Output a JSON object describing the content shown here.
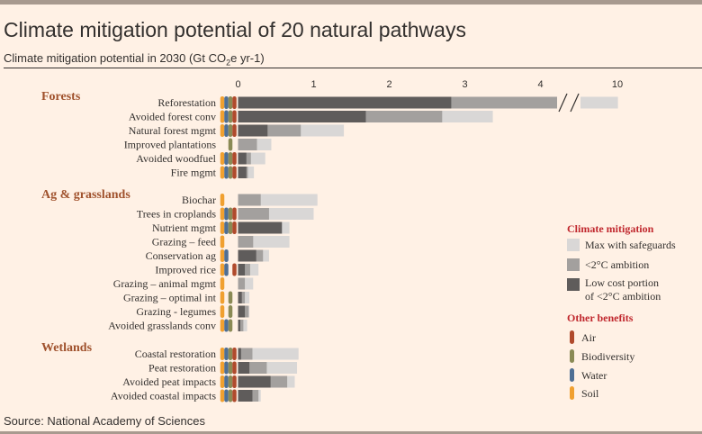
{
  "title": "Climate mitigation potential of 20 natural pathways",
  "subtitle": "Climate mitigation potential in 2030 (Gt CO",
  "subtitle_sub": "2",
  "subtitle_tail": "e yr-1)",
  "source": "Source: National Academy of Sciences",
  "colors": {
    "background": "#fff1e5",
    "max": "#d9d7d6",
    "ambition": "#a3a09e",
    "lowcost": "#5f5c5b",
    "air": "#b04a2c",
    "biodiversity": "#8a8a55",
    "water": "#4f6f94",
    "soil": "#f0a030",
    "group_label": "#a0522d",
    "legend_heading": "#c0272d"
  },
  "legend": {
    "mitigation_heading": "Climate mitigation",
    "max_label": "Max with safeguards",
    "ambition_label": "<2°C ambition",
    "lowcost_label_1": "Low cost portion",
    "lowcost_label_2": "of <2°C ambition",
    "benefits_heading": "Other benefits",
    "air_label": "Air",
    "biodiversity_label": "Biodiversity",
    "water_label": "Water",
    "soil_label": "Soil"
  },
  "chart_data": {
    "type": "bar",
    "orientation": "horizontal-stacked",
    "title": "Climate mitigation potential of 20 natural pathways",
    "xlabel": "Climate mitigation potential in 2030 (Gt CO2e yr-1)",
    "xlim": [
      0,
      10
    ],
    "ticks": [
      0,
      1,
      2,
      3,
      4,
      10
    ],
    "tick_labels": [
      "0",
      "1",
      "2",
      "3",
      "4",
      "10"
    ],
    "axis_break_between": [
      4,
      10
    ],
    "series_names": [
      "Low cost portion of <2°C ambition",
      "<2°C ambition",
      "Max with safeguards"
    ],
    "groups": [
      {
        "name": "Forests",
        "pathways": [
          {
            "name": "Reforestation",
            "lowcost": 2.82,
            "ambition": 4.3,
            "max": 10.1,
            "benefits": [
              "soil",
              "water",
              "biodiversity",
              "air"
            ]
          },
          {
            "name": "Avoided forest conv",
            "lowcost": 1.69,
            "ambition": 2.7,
            "max": 3.37,
            "benefits": [
              "soil",
              "water",
              "biodiversity",
              "air"
            ]
          },
          {
            "name": "Natural forest mgmt",
            "lowcost": 0.39,
            "ambition": 0.83,
            "max": 1.4,
            "benefits": [
              "soil",
              "water",
              "biodiversity",
              "air"
            ]
          },
          {
            "name": "Improved plantations",
            "lowcost": 0.0,
            "ambition": 0.25,
            "max": 0.44,
            "benefits": [
              "biodiversity"
            ]
          },
          {
            "name": "Avoided woodfuel",
            "lowcost": 0.11,
            "ambition": 0.17,
            "max": 0.36,
            "benefits": [
              "soil",
              "water",
              "biodiversity",
              "air"
            ]
          },
          {
            "name": "Fire mgmt",
            "lowcost": 0.11,
            "ambition": 0.13,
            "max": 0.21,
            "benefits": [
              "soil",
              "water",
              "biodiversity",
              "air"
            ]
          }
        ]
      },
      {
        "name": "Ag & grasslands",
        "pathways": [
          {
            "name": "Biochar",
            "lowcost": 0.0,
            "ambition": 0.3,
            "max": 1.05,
            "benefits": [
              "soil"
            ]
          },
          {
            "name": "Trees in croplands",
            "lowcost": 0.0,
            "ambition": 0.41,
            "max": 1.0,
            "benefits": [
              "soil",
              "water",
              "biodiversity",
              "air"
            ]
          },
          {
            "name": "Nutrient mgmt",
            "lowcost": 0.58,
            "ambition": 0.58,
            "max": 0.68,
            "benefits": [
              "soil",
              "water",
              "biodiversity",
              "air"
            ]
          },
          {
            "name": "Grazing – feed",
            "lowcost": 0.0,
            "ambition": 0.2,
            "max": 0.68,
            "benefits": [
              "soil"
            ]
          },
          {
            "name": "Conservation ag",
            "lowcost": 0.24,
            "ambition": 0.33,
            "max": 0.41,
            "benefits": [
              "soil",
              "water"
            ]
          },
          {
            "name": "Improved rice",
            "lowcost": 0.09,
            "ambition": 0.16,
            "max": 0.27,
            "benefits": [
              "soil",
              "water",
              "air"
            ]
          },
          {
            "name": "Grazing – animal mgmt",
            "lowcost": 0.0,
            "ambition": 0.09,
            "max": 0.2,
            "benefits": [
              "soil"
            ]
          },
          {
            "name": "Grazing – optimal int",
            "lowcost": 0.05,
            "ambition": 0.09,
            "max": 0.15,
            "benefits": [
              "soil",
              "biodiversity"
            ]
          },
          {
            "name": "Grazing - legumes",
            "lowcost": 0.09,
            "ambition": 0.14,
            "max": 0.15,
            "benefits": [
              "soil",
              "biodiversity"
            ]
          },
          {
            "name": "Avoided grasslands conv",
            "lowcost": 0.03,
            "ambition": 0.07,
            "max": 0.12,
            "benefits": [
              "soil",
              "water",
              "biodiversity"
            ]
          }
        ]
      },
      {
        "name": "Wetlands",
        "pathways": [
          {
            "name": "Coastal restoration",
            "lowcost": 0.04,
            "ambition": 0.19,
            "max": 0.8,
            "benefits": [
              "soil",
              "water",
              "biodiversity",
              "air"
            ]
          },
          {
            "name": "Peat restoration",
            "lowcost": 0.15,
            "ambition": 0.38,
            "max": 0.78,
            "benefits": [
              "soil",
              "water",
              "biodiversity",
              "air"
            ]
          },
          {
            "name": "Avoided peat impacts",
            "lowcost": 0.43,
            "ambition": 0.65,
            "max": 0.75,
            "benefits": [
              "soil",
              "water",
              "biodiversity",
              "air"
            ]
          },
          {
            "name": "Avoided coastal impacts",
            "lowcost": 0.19,
            "ambition": 0.27,
            "max": 0.3,
            "benefits": [
              "soil",
              "water",
              "biodiversity",
              "air"
            ]
          }
        ]
      }
    ]
  }
}
